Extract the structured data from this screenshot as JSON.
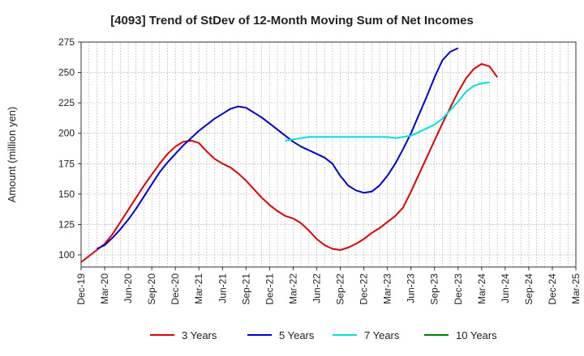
{
  "chart_data": {
    "type": "line",
    "title": "[4093]  Trend of StDev of 12-Month Moving Sum of Net Incomes",
    "ylabel": "Amount (million yen)",
    "xlabel": "",
    "ylim": [
      90,
      275
    ],
    "yticks": [
      100,
      125,
      150,
      175,
      200,
      225,
      250,
      275
    ],
    "x_tick_labels": [
      "Dec-19",
      "Mar-20",
      "Jun-20",
      "Sep-20",
      "Dec-20",
      "Mar-21",
      "Jun-21",
      "Sep-21",
      "Dec-21",
      "Mar-22",
      "Jun-22",
      "Sep-22",
      "Dec-22",
      "Mar-23",
      "Jun-23",
      "Sep-23",
      "Dec-23",
      "Mar-24",
      "Jun-24",
      "Sep-24",
      "Dec-24",
      "Mar-25"
    ],
    "x_range_months": [
      0,
      63
    ],
    "grid": true,
    "legend_position": "bottom",
    "series": [
      {
        "name": "3 Years",
        "color": "#dd0000",
        "x": [
          0,
          1,
          2,
          3,
          4,
          5,
          6,
          7,
          8,
          9,
          10,
          11,
          12,
          13,
          14,
          15,
          16,
          17,
          18,
          19,
          20,
          21,
          22,
          23,
          24,
          25,
          26,
          27,
          28,
          29,
          30,
          31,
          32,
          33,
          34,
          35,
          36,
          37,
          38,
          39,
          40,
          41,
          42,
          43,
          44,
          45,
          46,
          47,
          48,
          49,
          50,
          51,
          52,
          53,
          54,
          55,
          56,
          57,
          58,
          59,
          60
        ],
        "values": [
          94,
          99,
          104,
          109,
          117,
          127,
          137,
          147,
          157,
          166,
          175,
          183,
          189,
          193,
          194,
          192,
          185,
          179,
          175,
          172,
          167,
          161,
          154,
          147,
          141,
          136,
          132,
          130,
          126,
          120,
          113,
          108,
          105,
          104,
          106,
          109,
          113,
          118,
          122,
          127,
          132,
          139,
          152,
          166,
          180,
          194,
          208,
          221,
          234,
          245,
          253,
          257,
          255,
          246,
          null,
          null,
          null,
          null,
          null,
          null,
          null
        ]
      },
      {
        "name": "5 Years",
        "color": "#0000cc",
        "x": [
          2,
          3,
          4,
          5,
          6,
          7,
          8,
          9,
          10,
          11,
          12,
          13,
          14,
          15,
          16,
          17,
          18,
          19,
          20,
          21,
          22,
          23,
          24,
          25,
          26,
          27,
          28,
          29,
          30,
          31,
          32,
          33,
          34,
          35,
          36,
          37,
          38,
          39,
          40,
          41,
          42,
          43,
          44,
          45,
          46,
          47,
          48,
          49,
          50,
          51,
          52,
          53,
          54,
          55,
          56,
          57,
          58,
          59,
          60,
          61,
          62
        ],
        "values": [
          105,
          108,
          114,
          121,
          129,
          138,
          148,
          158,
          168,
          176,
          183,
          190,
          196,
          202,
          207,
          212,
          216,
          220,
          222,
          221,
          217,
          213,
          208,
          203,
          198,
          193,
          189,
          186,
          183,
          180,
          175,
          165,
          157,
          153,
          151,
          152,
          157,
          165,
          175,
          187,
          200,
          215,
          230,
          246,
          260,
          267,
          270,
          null,
          null,
          null,
          null,
          null,
          null,
          null,
          null,
          null,
          null,
          null,
          null,
          null,
          null
        ]
      },
      {
        "name": "7 Years",
        "color": "#00e0e0",
        "x": [
          26,
          27,
          28,
          29,
          30,
          31,
          32,
          33,
          34,
          35,
          36,
          37,
          38,
          39,
          40,
          41,
          42,
          43,
          44,
          45,
          46,
          47,
          48,
          49,
          50,
          51,
          52,
          53,
          54,
          55,
          56,
          57,
          58,
          59,
          60,
          61,
          62
        ],
        "values": [
          194,
          195,
          196,
          197,
          197,
          197,
          197,
          197,
          197,
          197,
          197,
          197,
          197,
          197,
          196,
          197,
          198,
          201,
          204,
          207,
          212,
          219,
          226,
          234,
          239,
          241,
          242,
          null,
          null,
          null,
          null,
          null,
          null,
          null,
          null,
          null,
          null
        ]
      },
      {
        "name": "10 Years",
        "color": "#008000",
        "x": [],
        "values": []
      }
    ]
  }
}
